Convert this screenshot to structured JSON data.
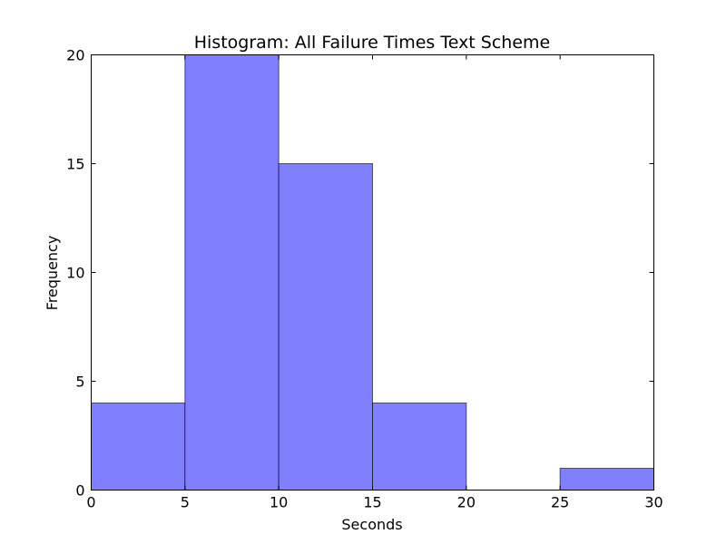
{
  "chart_data": {
    "type": "bar",
    "title": "Histogram: All Failure Times Text Scheme",
    "xlabel": "Seconds",
    "ylabel": "Frequency",
    "bins": [
      {
        "start": 0,
        "end": 5,
        "value": 4
      },
      {
        "start": 5,
        "end": 10,
        "value": 20
      },
      {
        "start": 10,
        "end": 15,
        "value": 15
      },
      {
        "start": 15,
        "end": 20,
        "value": 4
      },
      {
        "start": 20,
        "end": 25,
        "value": 0
      },
      {
        "start": 25,
        "end": 30,
        "value": 1
      }
    ],
    "xlim": [
      0,
      30
    ],
    "ylim": [
      0,
      20
    ],
    "xticks": [
      0,
      5,
      10,
      15,
      20,
      25,
      30
    ],
    "yticks": [
      0,
      5,
      10,
      15,
      20
    ],
    "grid": false,
    "bar_color": "#8080ff",
    "edge_color": "#000000"
  }
}
